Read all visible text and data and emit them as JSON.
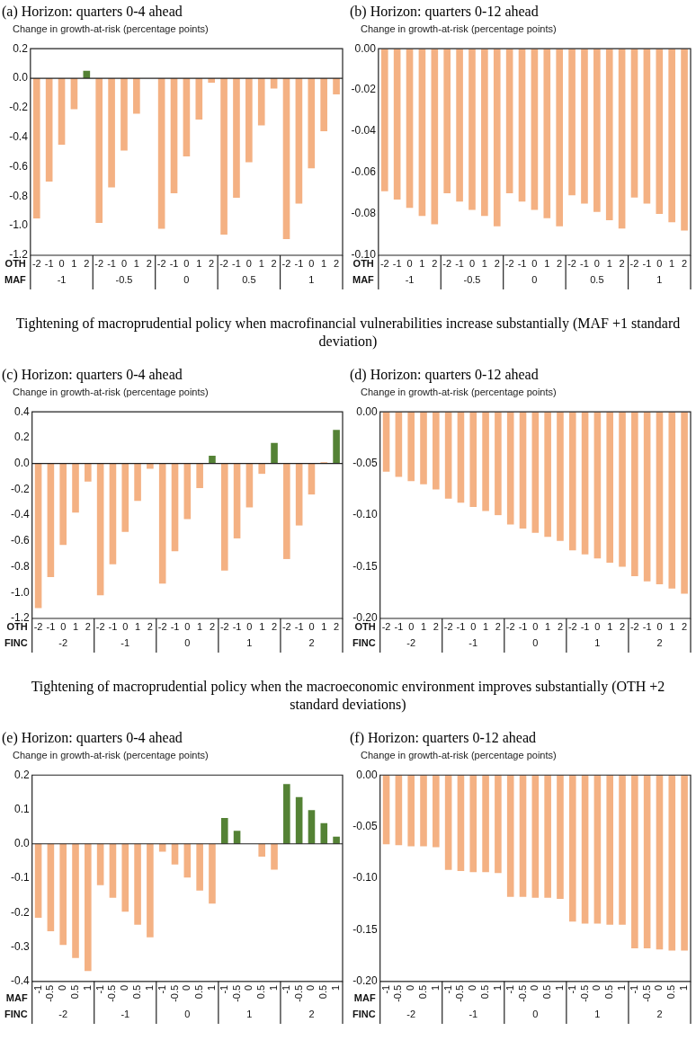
{
  "chart_data": [
    {
      "type": "bar",
      "title": "(a) Horizon: quarters 0-4 ahead",
      "ylabel": "Change in growth-at-risk (percentage points)",
      "categories": [
        "-2",
        "-1",
        "0",
        "1",
        "2",
        "-2",
        "-1",
        "0",
        "1",
        "2",
        "-2",
        "-1",
        "0",
        "1",
        "2",
        "-2",
        "-1",
        "0",
        "1",
        "2",
        "-2",
        "-1",
        "0",
        "1",
        "2"
      ],
      "values": [
        -0.95,
        -0.7,
        -0.45,
        -0.21,
        0.05,
        -0.98,
        -0.74,
        -0.49,
        -0.24,
        0,
        -1.02,
        -0.78,
        -0.53,
        -0.28,
        -0.03,
        -1.06,
        -0.81,
        -0.57,
        -0.32,
        -0.07,
        -1.09,
        -0.85,
        -0.61,
        -0.36,
        -0.11
      ],
      "colors": [
        "#f4b183",
        "#f4b183",
        "#f4b183",
        "#f4b183",
        "#548235",
        "#f4b183",
        "#f4b183",
        "#f4b183",
        "#f4b183",
        "#f4b183",
        "#f4b183",
        "#f4b183",
        "#f4b183",
        "#f4b183",
        "#f4b183",
        "#f4b183",
        "#f4b183",
        "#f4b183",
        "#f4b183",
        "#f4b183",
        "#f4b183",
        "#f4b183",
        "#f4b183",
        "#f4b183",
        "#f4b183"
      ],
      "ylim": [
        -1.2,
        0.2
      ],
      "yticks": [
        {
          "value": -1.2,
          "label": "-1.2"
        },
        {
          "value": -1,
          "label": "-1.0"
        },
        {
          "value": -0.8,
          "label": "-0.8"
        },
        {
          "value": -0.6,
          "label": "-0.6"
        },
        {
          "value": -0.4,
          "label": "-0.4"
        },
        {
          "value": -0.2,
          "label": "-0.2"
        },
        {
          "value": 0,
          "label": "0.0"
        },
        {
          "value": 0.2,
          "label": "0.2"
        }
      ],
      "annotations": [
        "OTH",
        "MAF",
        "-1",
        "-0.5",
        "0",
        "0.5",
        "1"
      ]
    },
    {
      "type": "bar",
      "title": "(b) Horizon: quarters 0-12 ahead",
      "ylabel": "Change in growth-at-risk (percentage points)",
      "categories": [
        "-2",
        "-1",
        "0",
        "1",
        "2",
        "-2",
        "-1",
        "0",
        "1",
        "2",
        "-2",
        "-1",
        "0",
        "1",
        "2",
        "-2",
        "-1",
        "0",
        "1",
        "2",
        "-2",
        "-1",
        "0",
        "1",
        "2"
      ],
      "values": [
        -0.069,
        -0.073,
        -0.077,
        -0.081,
        -0.085,
        -0.07,
        -0.074,
        -0.078,
        -0.081,
        -0.086,
        -0.07,
        -0.074,
        -0.078,
        -0.082,
        -0.086,
        -0.071,
        -0.075,
        -0.079,
        -0.083,
        -0.087,
        -0.072,
        -0.075,
        -0.08,
        -0.084,
        -0.088
      ],
      "colors": [
        "#f4b183",
        "#f4b183",
        "#f4b183",
        "#f4b183",
        "#f4b183",
        "#f4b183",
        "#f4b183",
        "#f4b183",
        "#f4b183",
        "#f4b183",
        "#f4b183",
        "#f4b183",
        "#f4b183",
        "#f4b183",
        "#f4b183",
        "#f4b183",
        "#f4b183",
        "#f4b183",
        "#f4b183",
        "#f4b183",
        "#f4b183",
        "#f4b183",
        "#f4b183",
        "#f4b183",
        "#f4b183"
      ],
      "ylim": [
        -0.1,
        0
      ],
      "yticks": [
        {
          "value": -0.1,
          "label": "-0.10"
        },
        {
          "value": -0.08,
          "label": "-0.08"
        },
        {
          "value": -0.06,
          "label": "-0.06"
        },
        {
          "value": -0.04,
          "label": "-0.04"
        },
        {
          "value": -0.02,
          "label": "-0.02"
        },
        {
          "value": 0,
          "label": "0.00"
        }
      ],
      "annotations": [
        "OTH",
        "MAF",
        "-1",
        "-0.5",
        "0",
        "0.5",
        "1"
      ]
    },
    {
      "type": "bar",
      "title": "(c) Horizon: quarters 0-4 ahead",
      "subtitle": "Tightening of macroprudential policy when macrofinancial vulnerabilities increase substantially (MAF +1 standard deviation)",
      "ylabel": "Change in growth-at-risk (percentage points)",
      "categories": [
        "-2",
        "-1",
        "0",
        "1",
        "2",
        "-2",
        "-1",
        "0",
        "1",
        "2",
        "-2",
        "-1",
        "0",
        "1",
        "2",
        "-2",
        "-1",
        "0",
        "1",
        "2",
        "-2",
        "-1",
        "0",
        "1",
        "2"
      ],
      "values": [
        -1.12,
        -0.88,
        -0.63,
        -0.38,
        -0.14,
        -1.02,
        -0.78,
        -0.53,
        -0.29,
        -0.04,
        -0.93,
        -0.68,
        -0.43,
        -0.19,
        0.06,
        -0.83,
        -0.58,
        -0.34,
        -0.08,
        0.16,
        -0.74,
        -0.48,
        -0.24,
        0.01,
        0.26
      ],
      "colors": [
        "#f4b183",
        "#f4b183",
        "#f4b183",
        "#f4b183",
        "#f4b183",
        "#f4b183",
        "#f4b183",
        "#f4b183",
        "#f4b183",
        "#f4b183",
        "#f4b183",
        "#f4b183",
        "#f4b183",
        "#f4b183",
        "#548235",
        "#f4b183",
        "#f4b183",
        "#f4b183",
        "#f4b183",
        "#548235",
        "#f4b183",
        "#f4b183",
        "#f4b183",
        "#f4b183",
        "#548235"
      ],
      "ylim": [
        -1.2,
        0.4
      ],
      "yticks": [
        {
          "value": -1.2,
          "label": "-1.2"
        },
        {
          "value": -1,
          "label": "-1.0"
        },
        {
          "value": -0.8,
          "label": "-0.8"
        },
        {
          "value": -0.6,
          "label": "-0.6"
        },
        {
          "value": -0.4,
          "label": "-0.4"
        },
        {
          "value": -0.2,
          "label": "-0.2"
        },
        {
          "value": 0,
          "label": "0.0"
        },
        {
          "value": 0.2,
          "label": "0.2"
        },
        {
          "value": 0.4,
          "label": "0.4"
        }
      ],
      "annotations": [
        "OTH",
        "FINC",
        "-2",
        "-1",
        "0",
        "1",
        "2"
      ]
    },
    {
      "type": "bar",
      "title": "(d) Horizon: quarters 0-12 ahead",
      "ylabel": "Change in growth-at-risk (percentage points)",
      "categories": [
        "-2",
        "-1",
        "0",
        "1",
        "2",
        "-2",
        "-1",
        "0",
        "1",
        "2",
        "-2",
        "-1",
        "0",
        "1",
        "2",
        "-2",
        "-1",
        "0",
        "1",
        "2",
        "-2",
        "-1",
        "0",
        "1",
        "2"
      ],
      "values": [
        -0.058,
        -0.063,
        -0.067,
        -0.07,
        -0.075,
        -0.084,
        -0.088,
        -0.092,
        -0.096,
        -0.1,
        -0.109,
        -0.113,
        -0.117,
        -0.121,
        -0.125,
        -0.134,
        -0.138,
        -0.142,
        -0.146,
        -0.15,
        -0.159,
        -0.164,
        -0.167,
        -0.171,
        -0.176
      ],
      "colors": [
        "#f4b183",
        "#f4b183",
        "#f4b183",
        "#f4b183",
        "#f4b183",
        "#f4b183",
        "#f4b183",
        "#f4b183",
        "#f4b183",
        "#f4b183",
        "#f4b183",
        "#f4b183",
        "#f4b183",
        "#f4b183",
        "#f4b183",
        "#f4b183",
        "#f4b183",
        "#f4b183",
        "#f4b183",
        "#f4b183",
        "#f4b183",
        "#f4b183",
        "#f4b183",
        "#f4b183",
        "#f4b183"
      ],
      "ylim": [
        -0.2,
        0
      ],
      "yticks": [
        {
          "value": -0.2,
          "label": "-0.20"
        },
        {
          "value": -0.15,
          "label": "-0.15"
        },
        {
          "value": -0.1,
          "label": "-0.10"
        },
        {
          "value": -0.05,
          "label": "-0.05"
        },
        {
          "value": 0,
          "label": "0.00"
        }
      ],
      "annotations": [
        "OTH",
        "FINC",
        "-2",
        "-1",
        "0",
        "1",
        "2"
      ]
    },
    {
      "type": "bar",
      "title": "(e) Horizon: quarters 0-4 ahead",
      "subtitle": "Tightening of macroprudential policy when the macroeconomic environment improves substantially (OTH +2 standard deviations)",
      "ylabel": "Change in growth-at-risk (percentage points)",
      "categories": [
        "-1",
        "-0.5",
        "0",
        "0.5",
        "1",
        "-1",
        "-0.5",
        "0",
        "0.5",
        "1",
        "-1",
        "-0.5",
        "0",
        "0.5",
        "1",
        "-1",
        "-0.5",
        "0",
        "0.5",
        "1",
        "-1",
        "-0.5",
        "0",
        "0.5",
        "1"
      ],
      "values": [
        -0.215,
        -0.254,
        -0.294,
        -0.332,
        -0.37,
        -0.12,
        -0.157,
        -0.197,
        -0.235,
        -0.272,
        -0.023,
        -0.06,
        -0.098,
        -0.136,
        -0.174,
        0.075,
        0.038,
        0,
        -0.037,
        -0.075,
        0.174,
        0.136,
        0.098,
        0.06,
        0.021
      ],
      "colors": [
        "#f4b183",
        "#f4b183",
        "#f4b183",
        "#f4b183",
        "#f4b183",
        "#f4b183",
        "#f4b183",
        "#f4b183",
        "#f4b183",
        "#f4b183",
        "#f4b183",
        "#f4b183",
        "#f4b183",
        "#f4b183",
        "#f4b183",
        "#548235",
        "#548235",
        "#f4b183",
        "#f4b183",
        "#f4b183",
        "#548235",
        "#548235",
        "#548235",
        "#548235",
        "#548235"
      ],
      "ylim": [
        -0.4,
        0.2
      ],
      "yticks": [
        {
          "value": -0.4,
          "label": "-0.4"
        },
        {
          "value": -0.3,
          "label": "-0.3"
        },
        {
          "value": -0.2,
          "label": "-0.2"
        },
        {
          "value": -0.1,
          "label": "-0.1"
        },
        {
          "value": 0,
          "label": "0.0"
        },
        {
          "value": 0.1,
          "label": "0.1"
        },
        {
          "value": 0.2,
          "label": "0.2"
        }
      ],
      "annotations": [
        "MAF",
        "FINC",
        "-2",
        "-1",
        "0",
        "1",
        "2"
      ]
    },
    {
      "type": "bar",
      "title": "(f) Horizon: quarters 0-12 ahead",
      "ylabel": "Change in growth-at-risk (percentage points)",
      "categories": [
        "-1",
        "-0.5",
        "0",
        "0.5",
        "1",
        "-1",
        "-0.5",
        "0",
        "0.5",
        "1",
        "-1",
        "-0.5",
        "0",
        "0.5",
        "1",
        "-1",
        "-0.5",
        "0",
        "0.5",
        "1",
        "-1",
        "-0.5",
        "0",
        "0.5",
        "1"
      ],
      "values": [
        -0.067,
        -0.068,
        -0.069,
        -0.069,
        -0.07,
        -0.092,
        -0.093,
        -0.094,
        -0.094,
        -0.095,
        -0.118,
        -0.118,
        -0.119,
        -0.119,
        -0.12,
        -0.142,
        -0.144,
        -0.144,
        -0.145,
        -0.145,
        -0.168,
        -0.168,
        -0.169,
        -0.17,
        -0.17
      ],
      "colors": [
        "#f4b183",
        "#f4b183",
        "#f4b183",
        "#f4b183",
        "#f4b183",
        "#f4b183",
        "#f4b183",
        "#f4b183",
        "#f4b183",
        "#f4b183",
        "#f4b183",
        "#f4b183",
        "#f4b183",
        "#f4b183",
        "#f4b183",
        "#f4b183",
        "#f4b183",
        "#f4b183",
        "#f4b183",
        "#f4b183",
        "#f4b183",
        "#f4b183",
        "#f4b183",
        "#f4b183",
        "#f4b183"
      ],
      "ylim": [
        -0.2,
        0
      ],
      "yticks": [
        {
          "value": -0.2,
          "label": "-0.20"
        },
        {
          "value": -0.15,
          "label": "-0.15"
        },
        {
          "value": -0.1,
          "label": "-0.10"
        },
        {
          "value": -0.05,
          "label": "-0.05"
        },
        {
          "value": 0,
          "label": "0.00"
        }
      ],
      "annotations": [
        "MAF",
        "FINC",
        "-2",
        "-1",
        "0",
        "1",
        "2"
      ]
    }
  ]
}
